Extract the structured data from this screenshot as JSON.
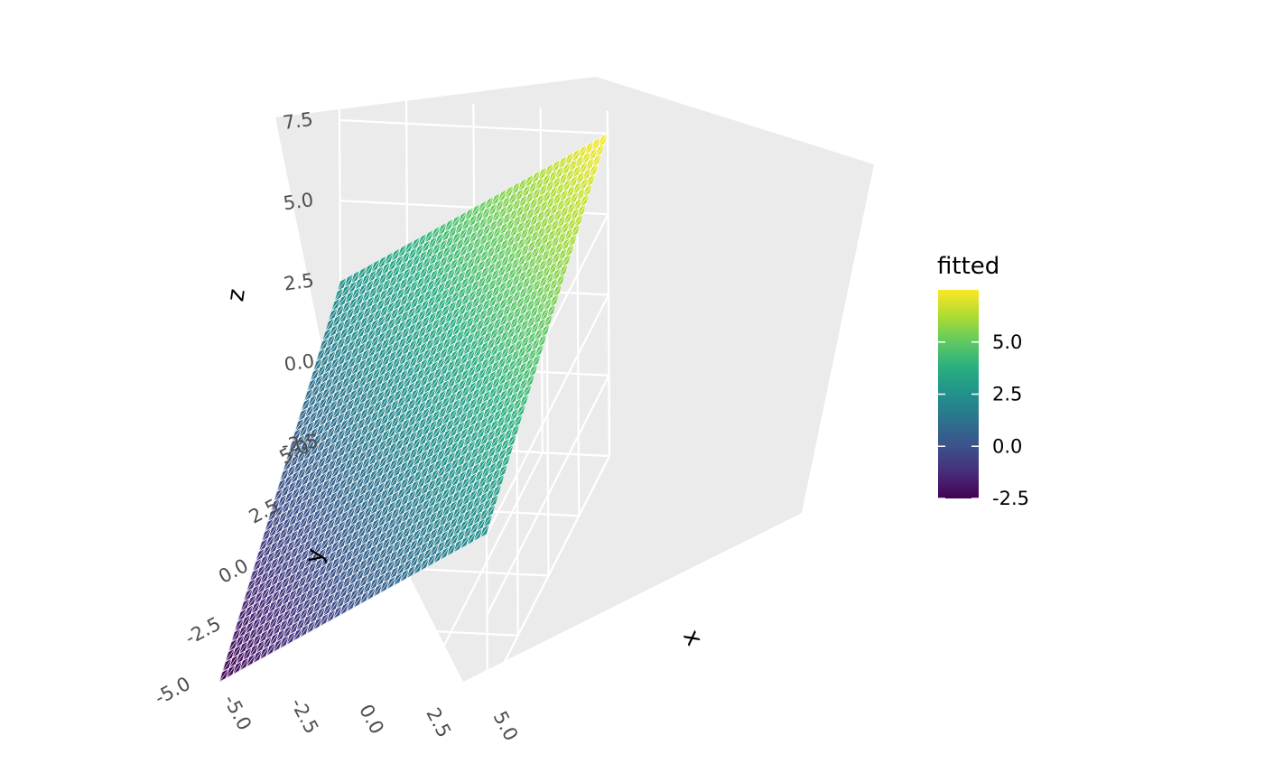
{
  "chart_data": {
    "type": "surface",
    "surface_function": "z = 0.5*x + 0.5*y + 2.5",
    "x_range": [
      -5,
      5
    ],
    "y_range": [
      -5,
      5
    ],
    "z_range": [
      -2.5,
      7.5
    ],
    "grid_resolution": 40,
    "xlabel": "x",
    "ylabel": "y",
    "zlabel": "z",
    "x_ticks": [
      "-5.0",
      "-2.5",
      "0.0",
      "2.5",
      "5.0"
    ],
    "y_ticks": [
      "-5.0",
      "-2.5",
      "0.0",
      "2.5",
      "5.0"
    ],
    "z_ticks": [
      "-2.5",
      "0.0",
      "2.5",
      "5.0",
      "7.5"
    ],
    "colorscale": "viridis",
    "legend": {
      "title": "fitted",
      "labels": [
        "5.0",
        "2.5",
        "0.0",
        "-2.5"
      ],
      "values": [
        5.0,
        2.5,
        0.0,
        -2.5
      ],
      "min": -2.5,
      "max": 7.5
    },
    "corner_values": {
      "x_-5_y_-5": -2.5,
      "x_5_y_-5": 2.5,
      "x_-5_y_5": 2.5,
      "x_5_y_5": 7.5
    },
    "colors": {
      "panel": "#ebebeb",
      "grid": "#ffffff",
      "mesh_lines": "#ffffff"
    }
  }
}
